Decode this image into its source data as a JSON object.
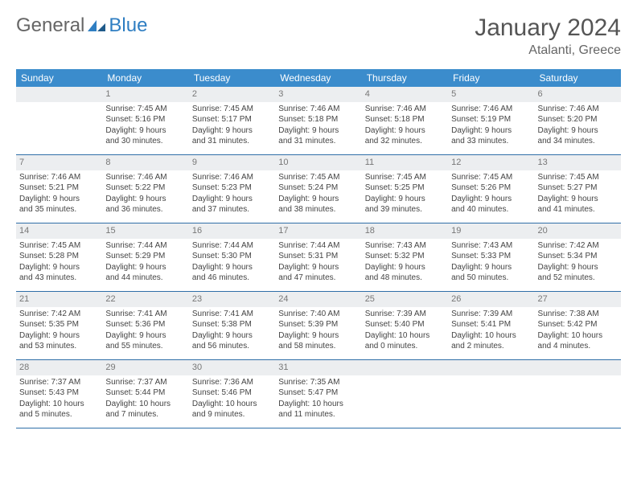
{
  "logo": {
    "text1": "General",
    "text2": "Blue"
  },
  "title": "January 2024",
  "location": "Atalanti, Greece",
  "colors": {
    "header_bg": "#3b8ccc",
    "header_text": "#ffffff",
    "daynum_bg": "#eceef0",
    "daynum_text": "#777777",
    "border": "#2f6fa8",
    "text": "#444444",
    "title": "#555555",
    "logo_blue": "#2f7ec2"
  },
  "day_names": [
    "Sunday",
    "Monday",
    "Tuesday",
    "Wednesday",
    "Thursday",
    "Friday",
    "Saturday"
  ],
  "weeks": [
    [
      {
        "empty": true
      },
      {
        "num": "1",
        "sunrise": "Sunrise: 7:45 AM",
        "sunset": "Sunset: 5:16 PM",
        "daylight1": "Daylight: 9 hours",
        "daylight2": "and 30 minutes."
      },
      {
        "num": "2",
        "sunrise": "Sunrise: 7:45 AM",
        "sunset": "Sunset: 5:17 PM",
        "daylight1": "Daylight: 9 hours",
        "daylight2": "and 31 minutes."
      },
      {
        "num": "3",
        "sunrise": "Sunrise: 7:46 AM",
        "sunset": "Sunset: 5:18 PM",
        "daylight1": "Daylight: 9 hours",
        "daylight2": "and 31 minutes."
      },
      {
        "num": "4",
        "sunrise": "Sunrise: 7:46 AM",
        "sunset": "Sunset: 5:18 PM",
        "daylight1": "Daylight: 9 hours",
        "daylight2": "and 32 minutes."
      },
      {
        "num": "5",
        "sunrise": "Sunrise: 7:46 AM",
        "sunset": "Sunset: 5:19 PM",
        "daylight1": "Daylight: 9 hours",
        "daylight2": "and 33 minutes."
      },
      {
        "num": "6",
        "sunrise": "Sunrise: 7:46 AM",
        "sunset": "Sunset: 5:20 PM",
        "daylight1": "Daylight: 9 hours",
        "daylight2": "and 34 minutes."
      }
    ],
    [
      {
        "num": "7",
        "sunrise": "Sunrise: 7:46 AM",
        "sunset": "Sunset: 5:21 PM",
        "daylight1": "Daylight: 9 hours",
        "daylight2": "and 35 minutes."
      },
      {
        "num": "8",
        "sunrise": "Sunrise: 7:46 AM",
        "sunset": "Sunset: 5:22 PM",
        "daylight1": "Daylight: 9 hours",
        "daylight2": "and 36 minutes."
      },
      {
        "num": "9",
        "sunrise": "Sunrise: 7:46 AM",
        "sunset": "Sunset: 5:23 PM",
        "daylight1": "Daylight: 9 hours",
        "daylight2": "and 37 minutes."
      },
      {
        "num": "10",
        "sunrise": "Sunrise: 7:45 AM",
        "sunset": "Sunset: 5:24 PM",
        "daylight1": "Daylight: 9 hours",
        "daylight2": "and 38 minutes."
      },
      {
        "num": "11",
        "sunrise": "Sunrise: 7:45 AM",
        "sunset": "Sunset: 5:25 PM",
        "daylight1": "Daylight: 9 hours",
        "daylight2": "and 39 minutes."
      },
      {
        "num": "12",
        "sunrise": "Sunrise: 7:45 AM",
        "sunset": "Sunset: 5:26 PM",
        "daylight1": "Daylight: 9 hours",
        "daylight2": "and 40 minutes."
      },
      {
        "num": "13",
        "sunrise": "Sunrise: 7:45 AM",
        "sunset": "Sunset: 5:27 PM",
        "daylight1": "Daylight: 9 hours",
        "daylight2": "and 41 minutes."
      }
    ],
    [
      {
        "num": "14",
        "sunrise": "Sunrise: 7:45 AM",
        "sunset": "Sunset: 5:28 PM",
        "daylight1": "Daylight: 9 hours",
        "daylight2": "and 43 minutes."
      },
      {
        "num": "15",
        "sunrise": "Sunrise: 7:44 AM",
        "sunset": "Sunset: 5:29 PM",
        "daylight1": "Daylight: 9 hours",
        "daylight2": "and 44 minutes."
      },
      {
        "num": "16",
        "sunrise": "Sunrise: 7:44 AM",
        "sunset": "Sunset: 5:30 PM",
        "daylight1": "Daylight: 9 hours",
        "daylight2": "and 46 minutes."
      },
      {
        "num": "17",
        "sunrise": "Sunrise: 7:44 AM",
        "sunset": "Sunset: 5:31 PM",
        "daylight1": "Daylight: 9 hours",
        "daylight2": "and 47 minutes."
      },
      {
        "num": "18",
        "sunrise": "Sunrise: 7:43 AM",
        "sunset": "Sunset: 5:32 PM",
        "daylight1": "Daylight: 9 hours",
        "daylight2": "and 48 minutes."
      },
      {
        "num": "19",
        "sunrise": "Sunrise: 7:43 AM",
        "sunset": "Sunset: 5:33 PM",
        "daylight1": "Daylight: 9 hours",
        "daylight2": "and 50 minutes."
      },
      {
        "num": "20",
        "sunrise": "Sunrise: 7:42 AM",
        "sunset": "Sunset: 5:34 PM",
        "daylight1": "Daylight: 9 hours",
        "daylight2": "and 52 minutes."
      }
    ],
    [
      {
        "num": "21",
        "sunrise": "Sunrise: 7:42 AM",
        "sunset": "Sunset: 5:35 PM",
        "daylight1": "Daylight: 9 hours",
        "daylight2": "and 53 minutes."
      },
      {
        "num": "22",
        "sunrise": "Sunrise: 7:41 AM",
        "sunset": "Sunset: 5:36 PM",
        "daylight1": "Daylight: 9 hours",
        "daylight2": "and 55 minutes."
      },
      {
        "num": "23",
        "sunrise": "Sunrise: 7:41 AM",
        "sunset": "Sunset: 5:38 PM",
        "daylight1": "Daylight: 9 hours",
        "daylight2": "and 56 minutes."
      },
      {
        "num": "24",
        "sunrise": "Sunrise: 7:40 AM",
        "sunset": "Sunset: 5:39 PM",
        "daylight1": "Daylight: 9 hours",
        "daylight2": "and 58 minutes."
      },
      {
        "num": "25",
        "sunrise": "Sunrise: 7:39 AM",
        "sunset": "Sunset: 5:40 PM",
        "daylight1": "Daylight: 10 hours",
        "daylight2": "and 0 minutes."
      },
      {
        "num": "26",
        "sunrise": "Sunrise: 7:39 AM",
        "sunset": "Sunset: 5:41 PM",
        "daylight1": "Daylight: 10 hours",
        "daylight2": "and 2 minutes."
      },
      {
        "num": "27",
        "sunrise": "Sunrise: 7:38 AM",
        "sunset": "Sunset: 5:42 PM",
        "daylight1": "Daylight: 10 hours",
        "daylight2": "and 4 minutes."
      }
    ],
    [
      {
        "num": "28",
        "sunrise": "Sunrise: 7:37 AM",
        "sunset": "Sunset: 5:43 PM",
        "daylight1": "Daylight: 10 hours",
        "daylight2": "and 5 minutes."
      },
      {
        "num": "29",
        "sunrise": "Sunrise: 7:37 AM",
        "sunset": "Sunset: 5:44 PM",
        "daylight1": "Daylight: 10 hours",
        "daylight2": "and 7 minutes."
      },
      {
        "num": "30",
        "sunrise": "Sunrise: 7:36 AM",
        "sunset": "Sunset: 5:46 PM",
        "daylight1": "Daylight: 10 hours",
        "daylight2": "and 9 minutes."
      },
      {
        "num": "31",
        "sunrise": "Sunrise: 7:35 AM",
        "sunset": "Sunset: 5:47 PM",
        "daylight1": "Daylight: 10 hours",
        "daylight2": "and 11 minutes."
      },
      {
        "empty": true
      },
      {
        "empty": true
      },
      {
        "empty": true
      }
    ]
  ]
}
